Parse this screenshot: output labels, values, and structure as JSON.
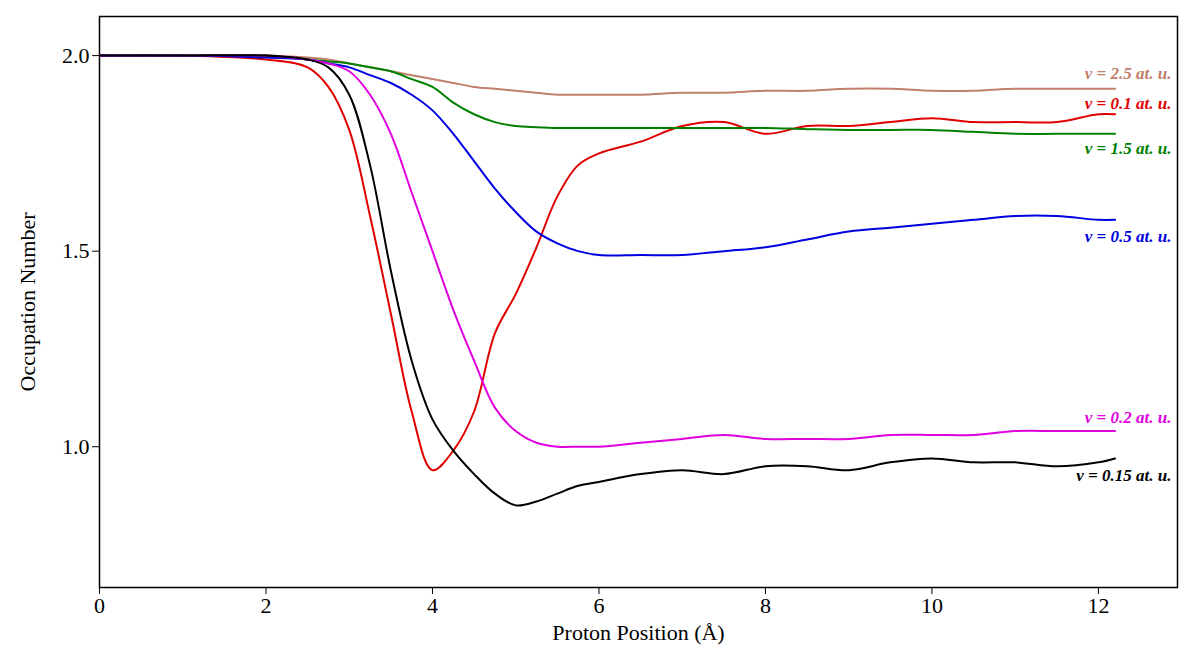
{
  "chart_data": {
    "type": "line",
    "x_label": "Proton Position (Å)",
    "y_label": "Occupation Number",
    "x": [
      0,
      1,
      2,
      2.5,
      2.75,
      3,
      3.25,
      3.5,
      3.75,
      4,
      4.25,
      4.5,
      4.75,
      5,
      5.25,
      5.5,
      5.75,
      6,
      6.5,
      7,
      7.5,
      8,
      8.5,
      9,
      9.5,
      10,
      10.5,
      11,
      11.5,
      12,
      12.2
    ],
    "series": [
      {
        "name": "v = 2.5 at. u.",
        "color": "#c0806a",
        "values": [
          2.0,
          2.0,
          2.0,
          1.995,
          1.99,
          1.98,
          1.97,
          1.96,
          1.95,
          1.94,
          1.93,
          1.92,
          1.915,
          1.91,
          1.905,
          1.9,
          1.9,
          1.9,
          1.9,
          1.905,
          1.905,
          1.91,
          1.91,
          1.915,
          1.915,
          1.91,
          1.91,
          1.915,
          1.915,
          1.915,
          1.915
        ]
      },
      {
        "name": "v = 0.1 at. u.",
        "color": "#e00000",
        "values": [
          2.0,
          2.0,
          1.99,
          1.97,
          1.92,
          1.81,
          1.59,
          1.34,
          1.09,
          0.94,
          0.99,
          1.09,
          1.29,
          1.39,
          1.51,
          1.64,
          1.72,
          1.75,
          1.78,
          1.82,
          1.83,
          1.8,
          1.82,
          1.82,
          1.83,
          1.84,
          1.83,
          1.83,
          1.83,
          1.85,
          1.85
        ]
      },
      {
        "name": "v = 1.5 at. u.",
        "color": "#008000",
        "values": [
          2.0,
          2.0,
          2.0,
          1.99,
          1.985,
          1.98,
          1.97,
          1.96,
          1.94,
          1.92,
          1.88,
          1.85,
          1.83,
          1.82,
          1.817,
          1.815,
          1.815,
          1.815,
          1.815,
          1.815,
          1.815,
          1.815,
          1.812,
          1.81,
          1.81,
          1.81,
          1.805,
          1.8,
          1.8,
          1.8,
          1.8
        ]
      },
      {
        "name": "v = 0.5 at. u.",
        "color": "#0000e0",
        "values": [
          2.0,
          2.0,
          1.995,
          1.99,
          1.98,
          1.97,
          1.95,
          1.93,
          1.9,
          1.86,
          1.8,
          1.73,
          1.66,
          1.6,
          1.55,
          1.52,
          1.5,
          1.49,
          1.49,
          1.49,
          1.5,
          1.51,
          1.53,
          1.55,
          1.56,
          1.57,
          1.58,
          1.59,
          1.59,
          1.58,
          1.58
        ]
      },
      {
        "name": "v = 0.2 at. u.",
        "color": "#e000e0",
        "values": [
          2.0,
          2.0,
          2.0,
          1.99,
          1.98,
          1.96,
          1.9,
          1.8,
          1.65,
          1.5,
          1.35,
          1.22,
          1.1,
          1.04,
          1.01,
          1.0,
          1.0,
          1.0,
          1.01,
          1.02,
          1.03,
          1.02,
          1.02,
          1.02,
          1.03,
          1.03,
          1.03,
          1.04,
          1.04,
          1.04,
          1.04
        ]
      },
      {
        "name": "v = 0.15 at. u.",
        "color": "#000000",
        "values": [
          2.0,
          2.0,
          2.0,
          1.99,
          1.97,
          1.9,
          1.72,
          1.45,
          1.22,
          1.07,
          0.99,
          0.93,
          0.88,
          0.85,
          0.86,
          0.88,
          0.9,
          0.91,
          0.93,
          0.94,
          0.93,
          0.95,
          0.95,
          0.94,
          0.96,
          0.97,
          0.96,
          0.96,
          0.95,
          0.96,
          0.97
        ]
      }
    ],
    "xlim": [
      0,
      12.95
    ],
    "ylim": [
      0.64,
      2.1
    ],
    "xticks": [
      0,
      2,
      4,
      6,
      8,
      10,
      12
    ],
    "yticks": [
      {
        "value": 1.0,
        "label": "1.0"
      },
      {
        "value": 1.5,
        "label": "1.5"
      },
      {
        "value": 2.0,
        "label": "2.0"
      }
    ],
    "grid": false
  }
}
